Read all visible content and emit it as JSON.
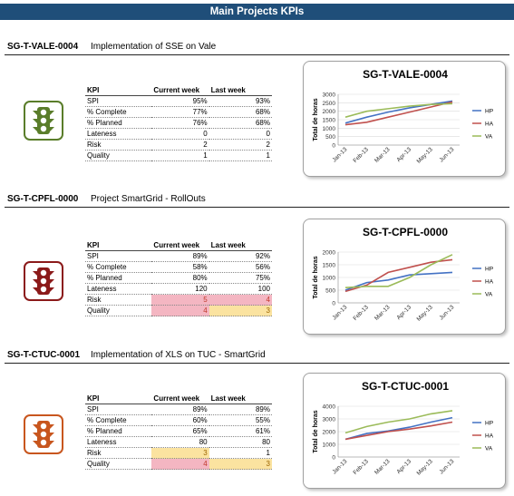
{
  "page_title": "Main Projects KPIs",
  "kpi_table_headers": {
    "kpi": "KPI",
    "current": "Current week",
    "last": "Last week"
  },
  "chart_legend": [
    "HP",
    "HA",
    "VA"
  ],
  "chart_colors": {
    "HP": "#4472c4",
    "HA": "#c0504d",
    "VA": "#9bbb59"
  },
  "projects": [
    {
      "code": "SG-T-VALE-0004",
      "name": "Implementation of SSE on Vale",
      "status_color": "#5a7d2a",
      "status_icon": "traffic-light-green",
      "kpis": [
        {
          "name": "SPI",
          "current": "95%",
          "last": "93%"
        },
        {
          "name": "% Complete",
          "current": "77%",
          "last": "68%"
        },
        {
          "name": "% Planned",
          "current": "76%",
          "last": "68%"
        },
        {
          "name": "Lateness",
          "current": "0",
          "last": "0"
        },
        {
          "name": "Risk",
          "current": "2",
          "last": "2"
        },
        {
          "name": "Quality",
          "current": "1",
          "last": "1"
        }
      ],
      "highlights": [
        null,
        null,
        null,
        null,
        null,
        null
      ]
    },
    {
      "code": "SG-T-CPFL-0000",
      "name": "Project SmartGrid - RollOuts",
      "status_color": "#8b1a1a",
      "status_icon": "traffic-light-red",
      "kpis": [
        {
          "name": "SPI",
          "current": "89%",
          "last": "92%"
        },
        {
          "name": "% Complete",
          "current": "58%",
          "last": "56%"
        },
        {
          "name": "% Planned",
          "current": "80%",
          "last": "75%"
        },
        {
          "name": "Lateness",
          "current": "120",
          "last": "100"
        },
        {
          "name": "Risk",
          "current": "5",
          "last": "4"
        },
        {
          "name": "Quality",
          "current": "4",
          "last": "3"
        }
      ],
      "highlights": [
        null,
        null,
        null,
        null,
        [
          "#f4b6c2",
          "#f4b6c2"
        ],
        [
          "#f4b6c2",
          "#fbe3a0"
        ]
      ]
    },
    {
      "code": "SG-T-CTUC-0001",
      "name": "Implementation of XLS on TUC - SmartGrid",
      "status_color": "#c8561e",
      "status_icon": "traffic-light-orange",
      "kpis": [
        {
          "name": "SPI",
          "current": "89%",
          "last": "89%"
        },
        {
          "name": "% Complete",
          "current": "60%",
          "last": "55%"
        },
        {
          "name": "% Planned",
          "current": "65%",
          "last": "61%"
        },
        {
          "name": "Lateness",
          "current": "80",
          "last": "80"
        },
        {
          "name": "Risk",
          "current": "3",
          "last": "1"
        },
        {
          "name": "Quality",
          "current": "4",
          "last": "3"
        }
      ],
      "highlights": [
        null,
        null,
        null,
        null,
        [
          "#fbe3a0",
          null
        ],
        [
          "#f4b6c2",
          "#fbe3a0"
        ]
      ]
    }
  ],
  "chart_data": [
    {
      "type": "line",
      "title": "SG-T-VALE-0004",
      "ylabel": "Total de horas",
      "x": [
        "Jan-13",
        "Feb-13",
        "Mar-13",
        "Apr-13",
        "May-13",
        "Jun-13"
      ],
      "ylim": [
        0,
        3000
      ],
      "yticks": [
        0,
        500,
        1000,
        1500,
        2000,
        2500,
        3000
      ],
      "series": [
        {
          "name": "HP",
          "values": [
            1300,
            1650,
            1950,
            2200,
            2400,
            2600
          ]
        },
        {
          "name": "HA",
          "values": [
            1200,
            1350,
            1650,
            1950,
            2250,
            2550
          ]
        },
        {
          "name": "VA",
          "values": [
            1650,
            2000,
            2150,
            2300,
            2400,
            2450
          ]
        }
      ]
    },
    {
      "type": "line",
      "title": "SG-T-CPFL-0000",
      "ylabel": "Total de horas",
      "x": [
        "Jan-13",
        "Feb-13",
        "Mar-13",
        "Apr-13",
        "May-13",
        "Jun-13"
      ],
      "ylim": [
        0,
        2000
      ],
      "yticks": [
        0,
        500,
        1000,
        1500,
        2000
      ],
      "series": [
        {
          "name": "HP",
          "values": [
            500,
            800,
            900,
            1100,
            1150,
            1200
          ]
        },
        {
          "name": "HA",
          "values": [
            450,
            700,
            1200,
            1400,
            1600,
            1700
          ]
        },
        {
          "name": "VA",
          "values": [
            600,
            650,
            650,
            1000,
            1500,
            1900
          ]
        }
      ]
    },
    {
      "type": "line",
      "title": "SG-T-CTUC-0001",
      "ylabel": "Total de horas",
      "x": [
        "Jan-13",
        "Feb-13",
        "Mar-13",
        "Apr-13",
        "May-13",
        "Jun-13"
      ],
      "ylim": [
        0,
        4000
      ],
      "yticks": [
        0,
        1000,
        2000,
        3000,
        4000
      ],
      "series": [
        {
          "name": "HP",
          "values": [
            1400,
            1850,
            2050,
            2350,
            2750,
            3100
          ]
        },
        {
          "name": "HA",
          "values": [
            1400,
            1700,
            2000,
            2200,
            2450,
            2750
          ]
        },
        {
          "name": "VA",
          "values": [
            1900,
            2400,
            2750,
            3000,
            3400,
            3650
          ]
        }
      ]
    }
  ]
}
